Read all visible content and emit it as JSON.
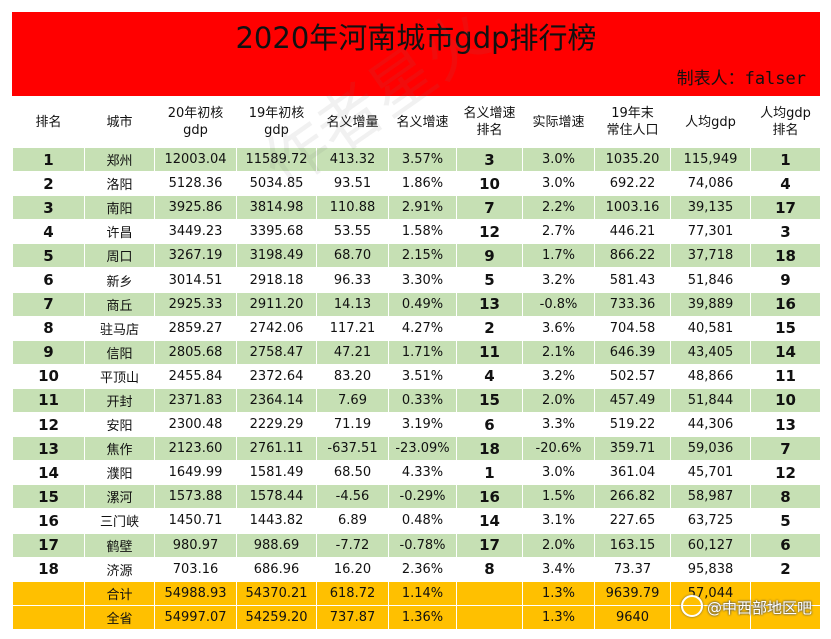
{
  "title": "2020年河南城市gdp排行榜",
  "maker": "制表人：falser",
  "columns": [
    "排名",
    "城市",
    "20年初核\ngdp",
    "19年初核\ngdp",
    "名义增量",
    "名义增速",
    "名义增速\n排名",
    "实际增速",
    "19年末\n常住人口",
    "人均gdp",
    "人均gdp\n排名"
  ],
  "rows": [
    [
      "1",
      "郑州",
      "12003.04",
      "11589.72",
      "413.32",
      "3.57%",
      "3",
      "3.0%",
      "1035.20",
      "115,949",
      "1"
    ],
    [
      "2",
      "洛阳",
      "5128.36",
      "5034.85",
      "93.51",
      "1.86%",
      "10",
      "3.0%",
      "692.22",
      "74,086",
      "4"
    ],
    [
      "3",
      "南阳",
      "3925.86",
      "3814.98",
      "110.88",
      "2.91%",
      "7",
      "2.2%",
      "1003.16",
      "39,135",
      "17"
    ],
    [
      "4",
      "许昌",
      "3449.23",
      "3395.68",
      "53.55",
      "1.58%",
      "12",
      "2.7%",
      "446.21",
      "77,301",
      "3"
    ],
    [
      "5",
      "周口",
      "3267.19",
      "3198.49",
      "68.70",
      "2.15%",
      "9",
      "1.7%",
      "866.22",
      "37,718",
      "18"
    ],
    [
      "6",
      "新乡",
      "3014.51",
      "2918.18",
      "96.33",
      "3.30%",
      "5",
      "3.2%",
      "581.43",
      "51,846",
      "9"
    ],
    [
      "7",
      "商丘",
      "2925.33",
      "2911.20",
      "14.13",
      "0.49%",
      "13",
      "-0.8%",
      "733.36",
      "39,889",
      "16"
    ],
    [
      "8",
      "驻马店",
      "2859.27",
      "2742.06",
      "117.21",
      "4.27%",
      "2",
      "3.6%",
      "704.58",
      "40,581",
      "15"
    ],
    [
      "9",
      "信阳",
      "2805.68",
      "2758.47",
      "47.21",
      "1.71%",
      "11",
      "2.1%",
      "646.39",
      "43,405",
      "14"
    ],
    [
      "10",
      "平顶山",
      "2455.84",
      "2372.64",
      "83.20",
      "3.51%",
      "4",
      "3.2%",
      "502.57",
      "48,866",
      "11"
    ],
    [
      "11",
      "开封",
      "2371.83",
      "2364.14",
      "7.69",
      "0.33%",
      "15",
      "2.0%",
      "457.49",
      "51,844",
      "10"
    ],
    [
      "12",
      "安阳",
      "2300.48",
      "2229.29",
      "71.19",
      "3.19%",
      "6",
      "3.3%",
      "519.22",
      "44,306",
      "13"
    ],
    [
      "13",
      "焦作",
      "2123.60",
      "2761.11",
      "-637.51",
      "-23.09%",
      "18",
      "-20.6%",
      "359.71",
      "59,036",
      "7"
    ],
    [
      "14",
      "濮阳",
      "1649.99",
      "1581.49",
      "68.50",
      "4.33%",
      "1",
      "3.0%",
      "361.04",
      "45,701",
      "12"
    ],
    [
      "15",
      "漯河",
      "1573.88",
      "1578.44",
      "-4.56",
      "-0.29%",
      "16",
      "1.5%",
      "266.82",
      "58,987",
      "8"
    ],
    [
      "16",
      "三门峡",
      "1450.71",
      "1443.82",
      "6.89",
      "0.48%",
      "14",
      "3.1%",
      "227.65",
      "63,725",
      "5"
    ],
    [
      "17",
      "鹤壁",
      "980.97",
      "988.69",
      "-7.72",
      "-0.78%",
      "17",
      "2.0%",
      "163.15",
      "60,127",
      "6"
    ],
    [
      "18",
      "济源",
      "703.16",
      "686.96",
      "16.20",
      "2.36%",
      "8",
      "3.4%",
      "73.37",
      "95,838",
      "2"
    ]
  ],
  "totals": [
    [
      "",
      "合计",
      "54988.93",
      "54370.21",
      "618.72",
      "1.14%",
      "",
      "1.3%",
      "9639.79",
      "57,044",
      ""
    ],
    [
      "",
      "全省",
      "54997.07",
      "54259.20",
      "737.87",
      "1.36%",
      "",
      "1.3%",
      "9640",
      "",
      ""
    ]
  ],
  "watermark": "@中西部地区吧",
  "faint_watermark": "作者星火",
  "colors": {
    "title_bg": "#ff0000",
    "row_green": "#c6e0b4",
    "row_white": "#ffffff",
    "total_bg": "#ffc000"
  }
}
